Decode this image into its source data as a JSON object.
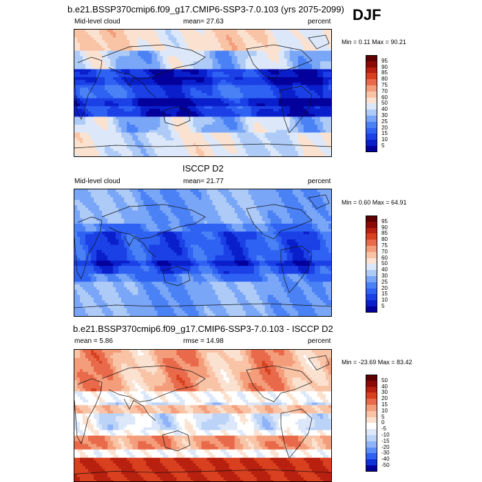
{
  "season": "DJF",
  "panels": [
    {
      "title": "b.e21.BSSP370cmip6.f09_g17.CMIP6-SSP3-7.0.103 (yrs 2075-2099)",
      "left_label": "Mid-level cloud",
      "center_label": "mean=  27.63",
      "right_label": "percent",
      "minmax": "Min =   0.11 Max =  90.21",
      "colorbar": [
        "95",
        "90",
        "85",
        "80",
        "75",
        "70",
        "60",
        "50",
        "40",
        "30",
        "25",
        "20",
        "15",
        "10",
        "5"
      ]
    },
    {
      "title": "ISCCP D2",
      "left_label": "Mid-level cloud",
      "center_label": "mean=  21.77",
      "right_label": "percent",
      "minmax": "Min =   0.60 Max =  64.91",
      "colorbar": [
        "95",
        "90",
        "85",
        "80",
        "75",
        "70",
        "60",
        "50",
        "40",
        "30",
        "25",
        "20",
        "15",
        "10",
        "5"
      ]
    },
    {
      "title": "b.e21.BSSP370cmip6.f09_g17.CMIP6-SSP3-7.0.103 - ISCCP D2",
      "left_label": "mean =   5.86",
      "center_label": "rmse =  14.98",
      "right_label": "percent",
      "minmax": "Min = -23.69 Max =  83.42",
      "colorbar": [
        "50",
        "40",
        "30",
        "20",
        "15",
        "10",
        "5",
        "0",
        "-5",
        "-10",
        "-15",
        "-20",
        "-30",
        "-40",
        "-50"
      ]
    }
  ],
  "colors": {
    "seq": [
      "#04009c",
      "#0a1fcc",
      "#1a40e6",
      "#2f62f2",
      "#4a82f6",
      "#7aa6f8",
      "#aecbf7",
      "#dce8fa",
      "#fbe2d0",
      "#f9c3a6",
      "#f49d7b",
      "#e86a4a",
      "#d9401f",
      "#b8200f",
      "#8c0a05",
      "#5e0000"
    ],
    "diff": [
      "#04009c",
      "#1030d8",
      "#2f62f2",
      "#5b8ff7",
      "#8fb3f8",
      "#bcd3f8",
      "#dce8fa",
      "#ffffff",
      "#fbe2d0",
      "#f9c3a6",
      "#f49d7b",
      "#e86a4a",
      "#d9401f",
      "#b8200f",
      "#8c0a05",
      "#5e0000"
    ]
  }
}
